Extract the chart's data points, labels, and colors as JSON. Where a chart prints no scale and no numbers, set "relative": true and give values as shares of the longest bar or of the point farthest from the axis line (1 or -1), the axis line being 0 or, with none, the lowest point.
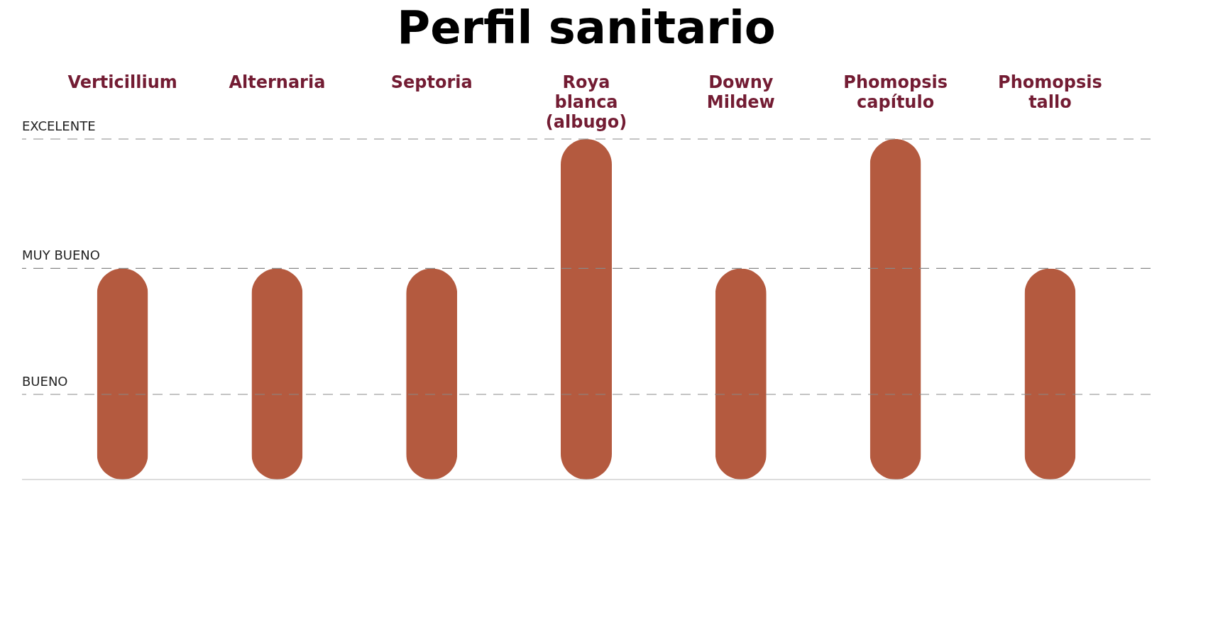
{
  "chart_data": {
    "type": "bar",
    "title": "Perfil sanitario",
    "relative": true,
    "categories": [
      "Verticillium",
      "Alternaria",
      "Septoria",
      "Roya blanca (albugo)",
      "Downy Mildew",
      "Phomopsis capítulo",
      "Phomopsis tallo"
    ],
    "values": [
      0.62,
      0.62,
      0.62,
      1,
      0.62,
      1,
      0.62
    ],
    "color": "#b45a3f",
    "ref_lines": [
      {
        "axis": "y",
        "value": 1,
        "label": "EXCELENTE",
        "color": "#888888",
        "line_style": "dashed"
      },
      {
        "axis": "y",
        "value": 0.62,
        "label": "MUY BUENO",
        "color": "#888888",
        "line_style": "dashed"
      },
      {
        "axis": "y",
        "value": 0.25,
        "label": "BUENO",
        "color": "#888888",
        "line_style": "dashed"
      }
    ]
  }
}
